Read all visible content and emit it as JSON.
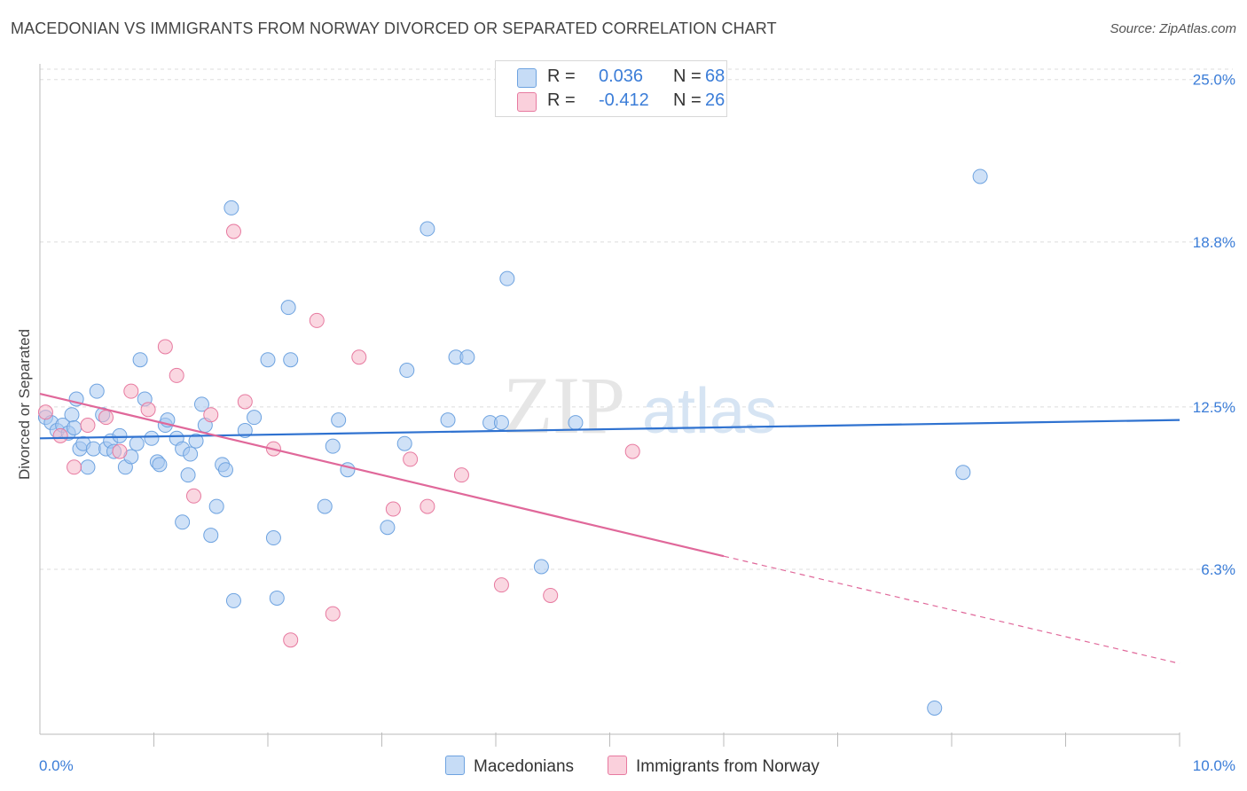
{
  "title": "MACEDONIAN VS IMMIGRANTS FROM NORWAY DIVORCED OR SEPARATED CORRELATION CHART",
  "source": "Source: ZipAtlas.com",
  "watermark": {
    "zip": "ZIP",
    "atlas": "atlas"
  },
  "legend_top": [
    {
      "r_label": "R =",
      "r_value": "0.036",
      "n_label": "N =",
      "n_value": "68",
      "color": "#a8c8f0"
    },
    {
      "r_label": "R =",
      "r_value": "-0.412",
      "n_label": "N =",
      "n_value": "26",
      "color": "#f5b6c8"
    }
  ],
  "legend_bottom": [
    {
      "label": "Macedonians",
      "color": "#a8c8f0"
    },
    {
      "label": "Immigrants from Norway",
      "color": "#f5b6c8"
    }
  ],
  "chart_data": {
    "type": "scatter",
    "title": "MACEDONIAN VS IMMIGRANTS FROM NORWAY DIVORCED OR SEPARATED CORRELATION CHART",
    "xlabel": "",
    "ylabel": "Divorced or Separated",
    "xlim": [
      0,
      10
    ],
    "ylim": [
      0,
      25.6
    ],
    "x_tick_labels": [
      {
        "value": 0,
        "label": "0.0%"
      },
      {
        "value": 10,
        "label": "10.0%"
      }
    ],
    "y_tick_labels": [
      {
        "value": 6.3,
        "label": "6.3%"
      },
      {
        "value": 12.5,
        "label": "12.5%"
      },
      {
        "value": 18.8,
        "label": "18.8%"
      },
      {
        "value": 25.0,
        "label": "25.0%"
      }
    ],
    "x_minor_ticks": [
      1,
      2,
      3,
      4,
      5,
      6,
      7,
      8,
      9,
      10
    ],
    "grid": true,
    "legend_placement": "top-center",
    "series": [
      {
        "name": "Macedonians",
        "color": "#6ea3e0",
        "fill": "#a8c8f0",
        "trend": {
          "x0": 0,
          "y0": 11.3,
          "x1": 10,
          "y1": 12.0,
          "style": "solid"
        },
        "points": [
          [
            0.05,
            12.1
          ],
          [
            0.1,
            11.9
          ],
          [
            0.15,
            11.6
          ],
          [
            0.2,
            11.8
          ],
          [
            0.25,
            11.5
          ],
          [
            0.28,
            12.2
          ],
          [
            0.3,
            11.7
          ],
          [
            0.32,
            12.8
          ],
          [
            0.35,
            10.9
          ],
          [
            0.38,
            11.1
          ],
          [
            0.42,
            10.2
          ],
          [
            0.47,
            10.9
          ],
          [
            0.5,
            13.1
          ],
          [
            0.55,
            12.2
          ],
          [
            0.58,
            10.9
          ],
          [
            0.62,
            11.2
          ],
          [
            0.65,
            10.8
          ],
          [
            0.7,
            11.4
          ],
          [
            0.75,
            10.2
          ],
          [
            0.8,
            10.6
          ],
          [
            0.85,
            11.1
          ],
          [
            0.88,
            14.3
          ],
          [
            0.92,
            12.8
          ],
          [
            0.98,
            11.3
          ],
          [
            1.03,
            10.4
          ],
          [
            1.05,
            10.3
          ],
          [
            1.1,
            11.8
          ],
          [
            1.12,
            12.0
          ],
          [
            1.2,
            11.3
          ],
          [
            1.25,
            10.9
          ],
          [
            1.25,
            8.1
          ],
          [
            1.3,
            9.9
          ],
          [
            1.32,
            10.7
          ],
          [
            1.37,
            11.2
          ],
          [
            1.42,
            12.6
          ],
          [
            1.45,
            11.8
          ],
          [
            1.5,
            7.6
          ],
          [
            1.55,
            8.7
          ],
          [
            1.6,
            10.3
          ],
          [
            1.63,
            10.1
          ],
          [
            1.68,
            20.1
          ],
          [
            1.7,
            5.1
          ],
          [
            1.8,
            11.6
          ],
          [
            1.88,
            12.1
          ],
          [
            2.0,
            14.3
          ],
          [
            2.05,
            7.5
          ],
          [
            2.08,
            5.2
          ],
          [
            2.18,
            16.3
          ],
          [
            2.2,
            14.3
          ],
          [
            2.5,
            8.7
          ],
          [
            2.57,
            11.0
          ],
          [
            2.62,
            12.0
          ],
          [
            2.7,
            10.1
          ],
          [
            3.05,
            7.9
          ],
          [
            3.2,
            11.1
          ],
          [
            3.22,
            13.9
          ],
          [
            3.4,
            19.3
          ],
          [
            3.58,
            12.0
          ],
          [
            3.65,
            14.4
          ],
          [
            3.75,
            14.4
          ],
          [
            3.95,
            11.9
          ],
          [
            4.05,
            11.9
          ],
          [
            4.1,
            17.4
          ],
          [
            4.4,
            6.4
          ],
          [
            4.7,
            11.9
          ],
          [
            8.1,
            10.0
          ],
          [
            8.25,
            21.3
          ],
          [
            7.85,
            1.0
          ]
        ]
      },
      {
        "name": "Immigrants from Norway",
        "color": "#e77aa0",
        "fill": "#f5b6c8",
        "trend": {
          "x0": 0,
          "y0": 13.0,
          "x1": 6.0,
          "y1": 6.8,
          "style": "solid",
          "dash_to": {
            "x": 10,
            "y": 2.7
          }
        },
        "points": [
          [
            0.05,
            12.3
          ],
          [
            0.18,
            11.4
          ],
          [
            0.3,
            10.2
          ],
          [
            0.42,
            11.8
          ],
          [
            0.58,
            12.1
          ],
          [
            0.7,
            10.8
          ],
          [
            0.8,
            13.1
          ],
          [
            0.95,
            12.4
          ],
          [
            1.1,
            14.8
          ],
          [
            1.2,
            13.7
          ],
          [
            1.35,
            9.1
          ],
          [
            1.5,
            12.2
          ],
          [
            1.7,
            19.2
          ],
          [
            1.8,
            12.7
          ],
          [
            2.05,
            10.9
          ],
          [
            2.2,
            3.6
          ],
          [
            2.43,
            15.8
          ],
          [
            2.8,
            14.4
          ],
          [
            3.1,
            8.6
          ],
          [
            3.25,
            10.5
          ],
          [
            3.4,
            8.7
          ],
          [
            3.7,
            9.9
          ],
          [
            4.05,
            5.7
          ],
          [
            4.48,
            5.3
          ],
          [
            5.2,
            10.8
          ],
          [
            2.57,
            4.6
          ]
        ]
      }
    ]
  }
}
